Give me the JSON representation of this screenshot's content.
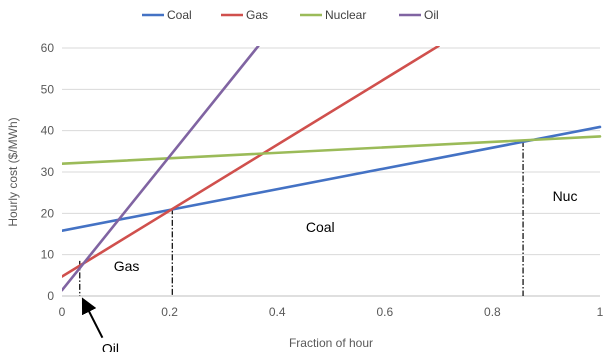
{
  "chart_data": {
    "type": "line",
    "xlabel": "Fraction of hour",
    "ylabel": "Hourly cost ($/MWh)",
    "xlim": [
      0,
      1
    ],
    "ylim": [
      0,
      60
    ],
    "x_ticks": [
      "0",
      "0.2",
      "0.4",
      "0.6",
      "0.8",
      "1"
    ],
    "y_ticks": [
      "0",
      "10",
      "20",
      "30",
      "40",
      "50",
      "60"
    ],
    "grid": "horizontal",
    "legend_position": "top",
    "series": [
      {
        "name": "Coal",
        "color": "#4472C4",
        "x": [
          0,
          1
        ],
        "y": [
          15.8,
          40.9
        ]
      },
      {
        "name": "Gas",
        "color": "#D0504D",
        "x": [
          0,
          0.7
        ],
        "y": [
          4.7,
          60.5
        ]
      },
      {
        "name": "Nuclear",
        "color": "#9BBB59",
        "x": [
          0,
          1
        ],
        "y": [
          32.0,
          38.6
        ]
      },
      {
        "name": "Oil",
        "color": "#8064A2",
        "x": [
          0,
          0.365
        ],
        "y": [
          1.4,
          60.5
        ]
      }
    ],
    "breakpoints": [
      {
        "x": 0.033,
        "y": 8.5
      },
      {
        "x": 0.205,
        "y": 21.2
      },
      {
        "x": 0.857,
        "y": 37.5
      }
    ],
    "region_labels": [
      {
        "text": "Gas",
        "x": 0.12,
        "y": 6
      },
      {
        "text": "Coal",
        "x": 0.48,
        "y": 15.5
      },
      {
        "text": "Nuc",
        "x": 0.935,
        "y": 23
      }
    ],
    "annotations": [
      {
        "text": "Oil",
        "x": 0.09,
        "y": -13,
        "arrow_to": [
          0.033,
          0
        ]
      }
    ]
  }
}
